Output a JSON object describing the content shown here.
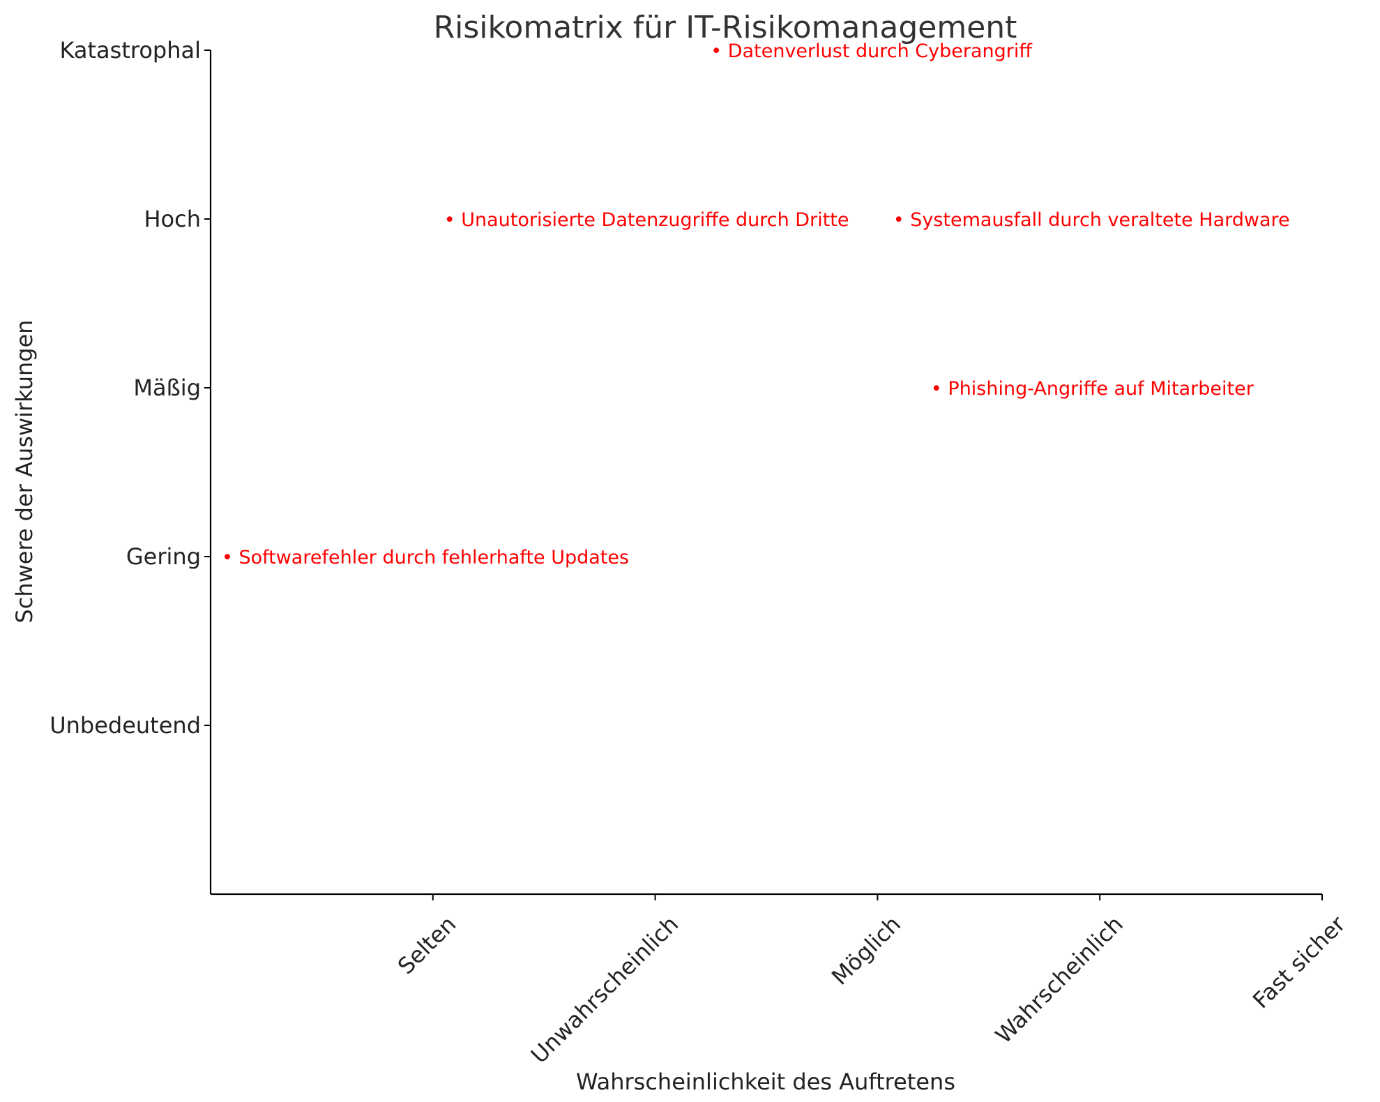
{
  "chart_data": {
    "type": "scatter",
    "title": "Risikomatrix für IT-Risikomanagement",
    "xlabel": "Wahrscheinlichkeit des Auftretens",
    "ylabel": "Schwere der Auswirkungen",
    "x_categories": [
      "Selten",
      "Unwahrscheinlich",
      "Möglich",
      "Wahrscheinlich",
      "Fast sicher"
    ],
    "y_categories": [
      "Unbedeutend",
      "Gering",
      "Mäßig",
      "Hoch",
      "Katastrophal"
    ],
    "xlim": [
      0,
      5
    ],
    "ylim": [
      0,
      5
    ],
    "grid": false,
    "point_color": "#ff0000",
    "points": [
      {
        "label": "• Datenverlust durch Cyberangriff",
        "x": 2.25,
        "y": 5
      },
      {
        "label": "• Unautorisierte Datenzugriffe durch Dritte",
        "x": 1.05,
        "y": 4
      },
      {
        "label": "• Systemausfall durch veraltete Hardware",
        "x": 3.07,
        "y": 4
      },
      {
        "label": "• Phishing-Angriffe auf Mitarbeiter",
        "x": 3.24,
        "y": 3
      },
      {
        "label": "• Softwarefehler durch fehlerhafte Updates",
        "x": 0.05,
        "y": 2
      }
    ]
  }
}
